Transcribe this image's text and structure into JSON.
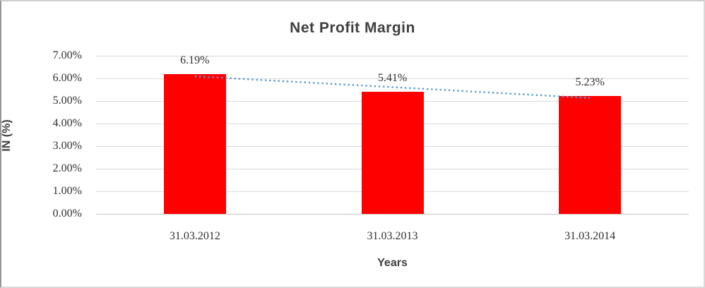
{
  "chart_data": {
    "type": "bar",
    "title": "Net Profit Margin",
    "categories": [
      "31.03.2012",
      "31.03.2013",
      "31.03.2014"
    ],
    "values": [
      6.19,
      5.41,
      5.23
    ],
    "data_labels": [
      "6.19%",
      "5.41%",
      "5.23%"
    ],
    "xlabel": "Years",
    "ylabel": "IN (%)",
    "ylim": [
      0,
      7
    ],
    "ytick_step": 1,
    "ytick_labels": [
      "0.00%",
      "1.00%",
      "2.00%",
      "3.00%",
      "4.00%",
      "5.00%",
      "6.00%",
      "7.00%"
    ],
    "grid": true,
    "legend": "none",
    "bar_color": "#ff0000",
    "trendline": {
      "kind": "linear",
      "style": "dotted",
      "color": "#5b9bd5",
      "start_value": 6.09,
      "end_value": 5.13
    }
  }
}
